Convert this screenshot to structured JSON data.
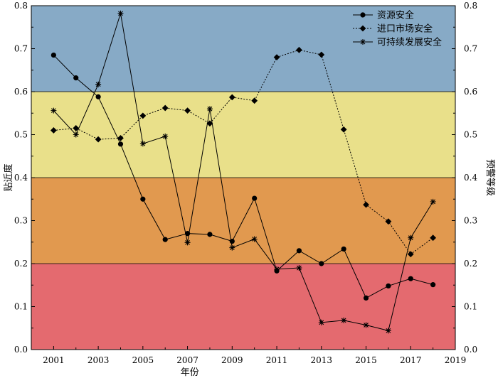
{
  "chart_data": {
    "type": "line",
    "xlabel": "年份",
    "ylabel": "贴近度",
    "y2label": "预警等级",
    "xlim": [
      2000,
      2019
    ],
    "ylim": [
      0.0,
      0.8
    ],
    "xticks": [
      "2001",
      "2003",
      "2005",
      "2007",
      "2009",
      "2011",
      "2013",
      "2015",
      "2017",
      "2019"
    ],
    "yticks": [
      "0.0",
      "0.1",
      "0.2",
      "0.3",
      "0.4",
      "0.5",
      "0.6",
      "0.7",
      "0.8"
    ],
    "legend_position": "top-right",
    "bands": [
      {
        "from": 0.6,
        "to": 0.8,
        "color": "#87aac6"
      },
      {
        "from": 0.4,
        "to": 0.6,
        "color": "#e9e08a"
      },
      {
        "from": 0.2,
        "to": 0.4,
        "color": "#e1994f"
      },
      {
        "from": 0.0,
        "to": 0.2,
        "color": "#e46a6f"
      }
    ],
    "x": [
      2001,
      2002,
      2003,
      2004,
      2005,
      2006,
      2007,
      2008,
      2009,
      2010,
      2011,
      2012,
      2013,
      2014,
      2015,
      2016,
      2017,
      2018
    ],
    "series": [
      {
        "name": "资源安全",
        "marker": "circle",
        "line": "solid",
        "values": [
          0.685,
          0.632,
          0.588,
          0.478,
          0.35,
          0.256,
          0.27,
          0.268,
          0.252,
          0.352,
          0.183,
          0.23,
          0.2,
          0.234,
          0.12,
          0.148,
          0.165,
          0.151
        ]
      },
      {
        "name": "进口市场安全",
        "marker": "diamond",
        "line": "dotted",
        "values": [
          0.51,
          0.515,
          0.489,
          0.492,
          0.544,
          0.562,
          0.556,
          0.526,
          0.587,
          0.579,
          0.68,
          0.697,
          0.686,
          0.512,
          0.337,
          0.298,
          0.222,
          0.26
        ]
      },
      {
        "name": "可持续发展安全",
        "marker": "star",
        "line": "solid",
        "values": [
          0.556,
          0.5,
          0.617,
          0.782,
          0.479,
          0.496,
          0.249,
          0.56,
          0.237,
          0.257,
          0.187,
          0.19,
          0.063,
          0.068,
          0.057,
          0.044,
          0.26,
          0.344
        ]
      }
    ]
  }
}
